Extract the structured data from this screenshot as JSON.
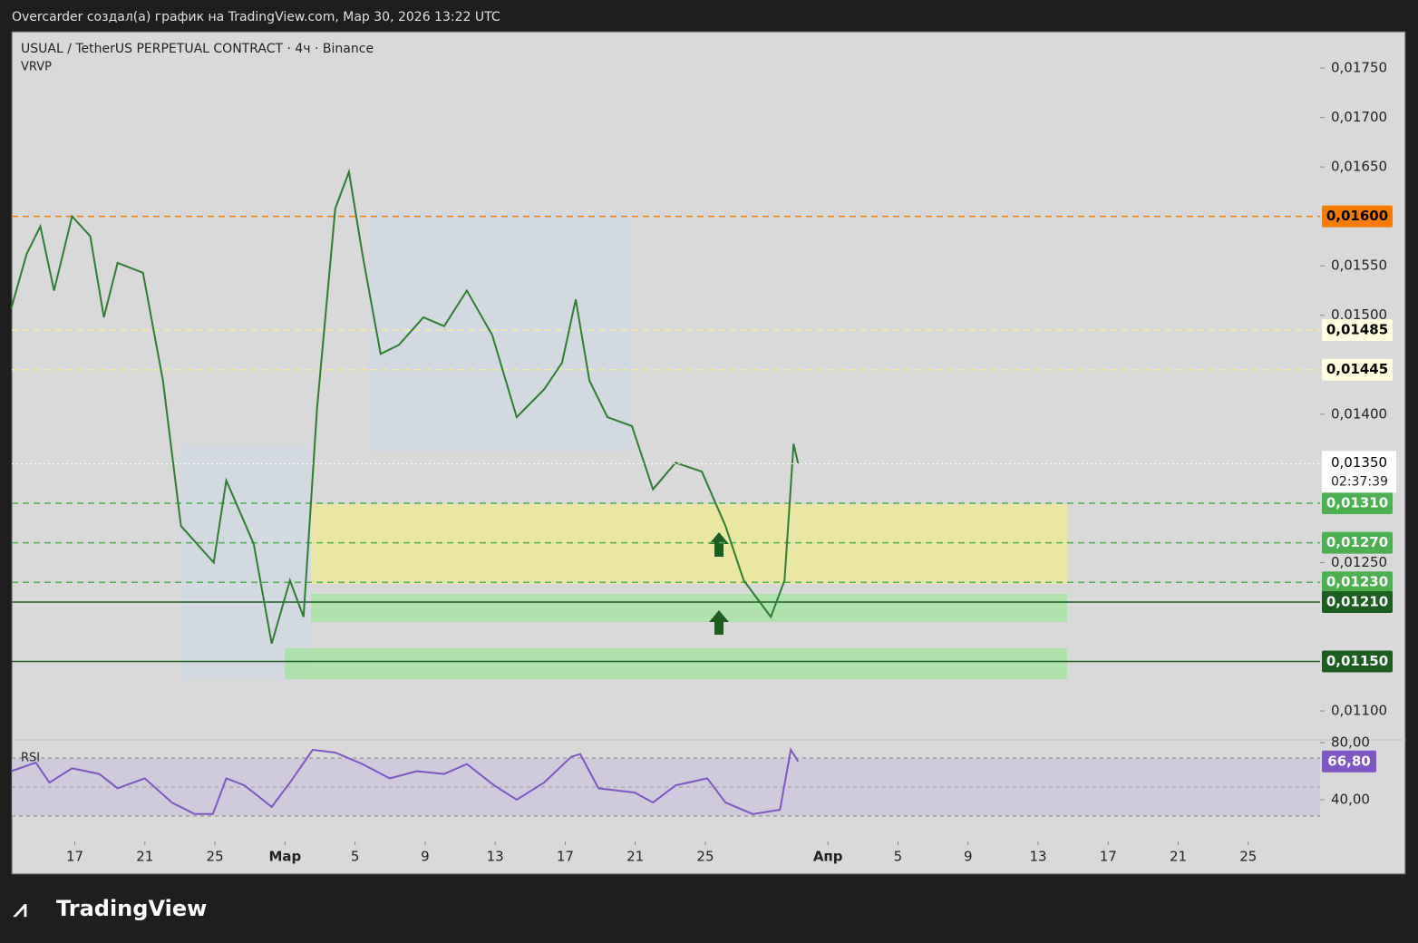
{
  "header": {
    "text": "Overcarder создал(а) график на TradingView.com, Мар 30, 2026 13:22 UTC"
  },
  "chart_data": [
    {
      "type": "line",
      "title": "USUAL / TetherUS PERPETUAL CONTRACT · 4ч · Binance",
      "subtitle": "VRVP",
      "color": "#2e7d32",
      "x": [
        13.37,
        14.25,
        15.03,
        15.81,
        16.84,
        17.88,
        18.66,
        19.44,
        20.89,
        22.03,
        23.06,
        24.93,
        25.65,
        27.21,
        28.24,
        29.28,
        30.06,
        30.83,
        31.87,
        32.65,
        33.42,
        34.46,
        35.5,
        36.9,
        38.09,
        39.38,
        40.83,
        42.23,
        43.79,
        44.82,
        45.6,
        46.38,
        47.41,
        48.81,
        50.01,
        51.3,
        52.8,
        54.15,
        55.19,
        56.74,
        57.52,
        58.04,
        58.3
      ],
      "values": [
        0.01507,
        0.01562,
        0.0159,
        0.01525,
        0.016,
        0.0158,
        0.01498,
        0.01553,
        0.01543,
        0.01434,
        0.01287,
        0.0125,
        0.01333,
        0.01269,
        0.01168,
        0.01232,
        0.01195,
        0.01406,
        0.01608,
        0.01645,
        0.01562,
        0.01461,
        0.0147,
        0.01498,
        0.01489,
        0.01525,
        0.0148,
        0.01397,
        0.01425,
        0.01452,
        0.01516,
        0.01434,
        0.01397,
        0.01388,
        0.01324,
        0.01351,
        0.01342,
        0.01287,
        0.01232,
        0.01195,
        0.01232,
        0.0137,
        0.0135
      ],
      "xlim": [
        13.4,
        88.1
      ],
      "ylim": [
        0.010707,
        0.017867
      ],
      "xticks": [
        17,
        21,
        25,
        {
          "value": 29,
          "label": "Мар"
        },
        {
          "value": 33,
          "label": "5"
        },
        {
          "value": 37,
          "label": "9"
        },
        {
          "value": 41,
          "label": "13"
        },
        {
          "value": 45,
          "label": "17"
        },
        {
          "value": 49,
          "label": "21"
        },
        {
          "value": 53,
          "label": "25"
        },
        {
          "value": 60,
          "label": "Апр"
        },
        {
          "value": 64,
          "label": "5"
        },
        {
          "value": 68,
          "label": "9"
        },
        {
          "value": 72,
          "label": "13"
        },
        {
          "value": 76,
          "label": "17"
        },
        {
          "value": 80,
          "label": "21"
        },
        {
          "value": 84,
          "label": "25"
        }
      ],
      "yticks": [
        {
          "value": 0.011,
          "label": "0,01100"
        },
        {
          "value": 0.0125,
          "label": "0,01250"
        },
        {
          "value": 0.014,
          "label": "0,01400"
        },
        {
          "value": 0.015,
          "label": "0,01500"
        },
        {
          "value": 0.0155,
          "label": "0,01550"
        },
        {
          "value": 0.0165,
          "label": "0,01650"
        },
        {
          "value": 0.017,
          "label": "0,01700"
        },
        {
          "value": 0.0175,
          "label": "0,01750"
        }
      ],
      "price_levels": [
        {
          "value": 0.016,
          "label": "0,01600",
          "color": "#f57c00",
          "text_color": "#000000",
          "line_style": "dashed"
        },
        {
          "value": 0.01485,
          "label": "0,01485",
          "color": "#fffde0",
          "text_color": "#000000",
          "line_style": "dashed"
        },
        {
          "value": 0.01445,
          "label": "0,01445",
          "color": "#fffde0",
          "text_color": "#000000",
          "line_style": "dashed"
        },
        {
          "value": 0.0131,
          "label": "0,01310",
          "color": "#4caf50",
          "text_color": "#ffffff",
          "line_style": "dashed"
        },
        {
          "value": 0.0127,
          "label": "0,01270",
          "color": "#4caf50",
          "text_color": "#ffffff",
          "line_style": "dashed"
        },
        {
          "value": 0.0123,
          "label": "0,01230",
          "color": "#4caf50",
          "text_color": "#ffffff",
          "line_style": "dashed"
        },
        {
          "value": 0.0121,
          "label": "0,01210",
          "color": "#1b5e20",
          "text_color": "#ffffff",
          "line_style": "solid"
        },
        {
          "value": 0.0115,
          "label": "0,01150",
          "color": "#1b5e20",
          "text_color": "#ffffff",
          "line_style": "solid"
        }
      ],
      "last_price": {
        "value": 0.0135,
        "label": "0,01350",
        "countdown": "02:37:39"
      }
    },
    {
      "type": "line",
      "title": "RSI",
      "color": "#7e57c2",
      "x": [
        13.37,
        14.77,
        15.55,
        16.84,
        18.4,
        19.44,
        20.99,
        22.54,
        23.84,
        24.88,
        25.65,
        26.69,
        28.24,
        29.28,
        30.58,
        31.87,
        33.42,
        34.98,
        36.53,
        38.09,
        39.38,
        40.94,
        42.23,
        43.79,
        45.34,
        45.86,
        46.9,
        48.97,
        50.01,
        51.3,
        53.11,
        54.15,
        55.71,
        57.26,
        57.88,
        58.3
      ],
      "values": [
        60,
        66,
        52,
        62,
        58,
        48,
        55,
        38,
        30,
        30,
        55,
        50,
        35,
        52,
        75,
        73,
        65,
        55,
        60,
        58,
        65,
        50,
        40,
        52,
        70,
        72,
        48,
        45,
        38,
        50,
        55,
        38,
        30,
        33,
        75,
        66.8
      ],
      "xlim": [
        13.4,
        88.1
      ],
      "ylim": [
        12.7,
        81.9
      ],
      "yticks": [
        {
          "value": 80,
          "label": "80,00"
        },
        {
          "value": 40,
          "label": "40,00"
        }
      ],
      "last": {
        "value": 66.8,
        "label": "66,80"
      }
    }
  ],
  "footer": {
    "brand": "TradingView"
  }
}
